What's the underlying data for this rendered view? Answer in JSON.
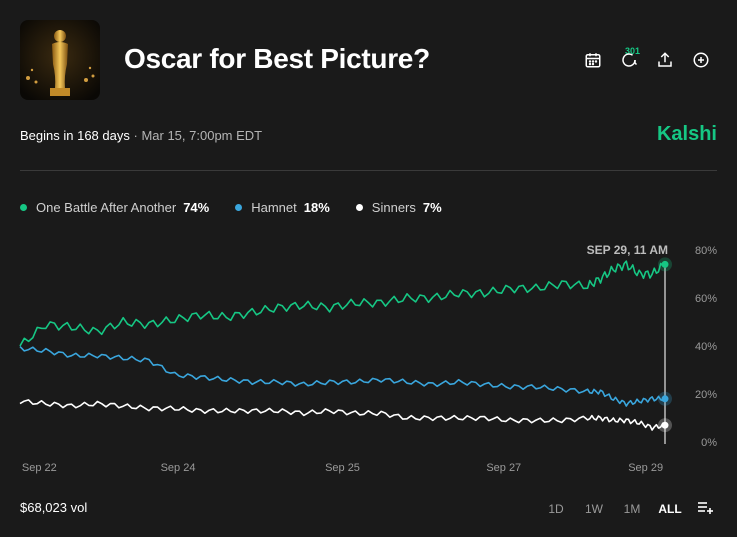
{
  "header": {
    "title": "Oscar for Best Picture?",
    "comment_count": "301",
    "icons": [
      "calendar-icon",
      "comment-icon",
      "share-icon",
      "add-icon"
    ]
  },
  "meta": {
    "begins": "Begins in 168 days",
    "separator": "·",
    "date": "Mar 15, 7:00pm EDT",
    "brand": "Kalshi",
    "brand_color": "#16c784"
  },
  "legend": [
    {
      "name": "One Battle After Another",
      "pct": "74%",
      "color": "#16c784"
    },
    {
      "name": "Hamnet",
      "pct": "18%",
      "color": "#3aa6dd"
    },
    {
      "name": "Sinners",
      "pct": "7%",
      "color": "#ffffff"
    }
  ],
  "footer": {
    "volume": "$68,023 vol",
    "ranges": [
      "1D",
      "1W",
      "1M",
      "ALL"
    ],
    "active_range": "ALL",
    "filter_icon": "filter-icon"
  },
  "chart_data": {
    "type": "line",
    "hover_label": "SEP 29, 11 AM",
    "x_ticks": [
      "Sep 22",
      "Sep 24",
      "Sep 25",
      "Sep 27",
      "Sep 29"
    ],
    "y_ticks": [
      "80%",
      "60%",
      "40%",
      "20%",
      "0%"
    ],
    "ylim": [
      0,
      80
    ],
    "grid": false,
    "legend_position": "top-left",
    "x_fraction": [
      0,
      0.04,
      0.08,
      0.12,
      0.16,
      0.2,
      0.24,
      0.28,
      0.32,
      0.36,
      0.4,
      0.44,
      0.48,
      0.52,
      0.56,
      0.6,
      0.64,
      0.68,
      0.72,
      0.76,
      0.8,
      0.84,
      0.88,
      0.9,
      0.92,
      0.94,
      0.96,
      0.98,
      1.0
    ],
    "series": [
      {
        "name": "One Battle After Another",
        "color": "#16c784",
        "values": [
          40,
          49,
          48,
          46,
          50,
          49,
          51,
          53,
          52,
          54,
          56,
          57,
          56,
          58,
          58,
          60,
          60,
          62,
          62,
          64,
          64,
          66,
          65,
          68,
          72,
          74,
          70,
          70,
          74
        ]
      },
      {
        "name": "Hamnet",
        "color": "#3aa6dd",
        "values": [
          39,
          38,
          36,
          36,
          35,
          34,
          28,
          27,
          26,
          25,
          25,
          24,
          25,
          25,
          26,
          25,
          24,
          25,
          24,
          23,
          23,
          22,
          21,
          21,
          18,
          16,
          17,
          18,
          18
        ]
      },
      {
        "name": "Sinners",
        "color": "#ffffff",
        "values": [
          17,
          16,
          15,
          16,
          15,
          14,
          14,
          13,
          13,
          13,
          13,
          12,
          13,
          12,
          12,
          10,
          10,
          10,
          10,
          9,
          9,
          9,
          10,
          10,
          9,
          9,
          8,
          6,
          7
        ]
      }
    ]
  }
}
